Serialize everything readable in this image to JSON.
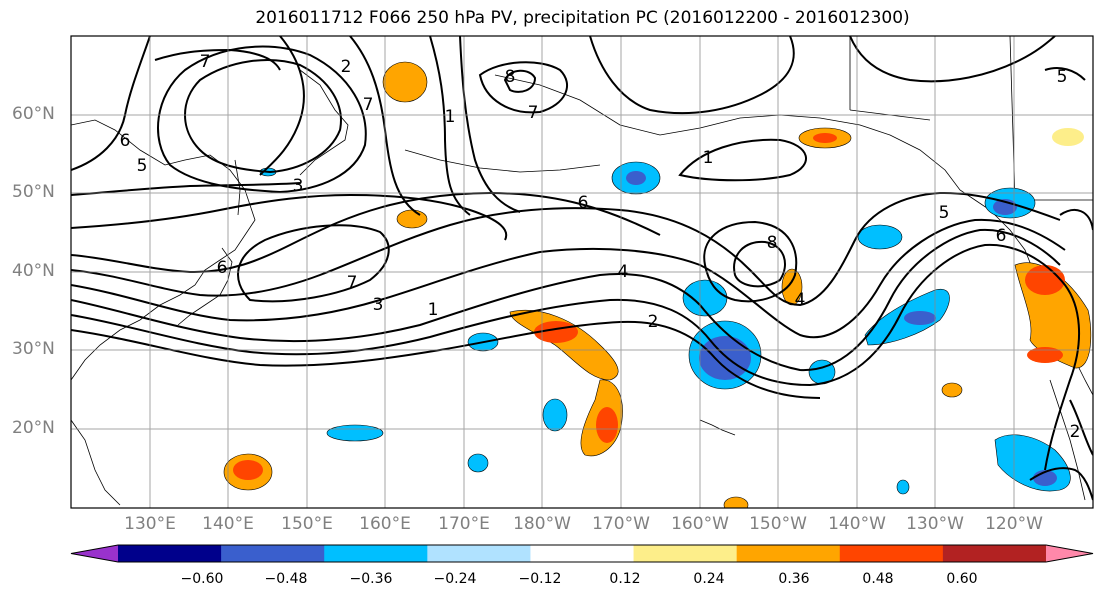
{
  "title": "2016011712 F066 250 hPa PV, precipitation PC (2016012200 - 2016012300)",
  "lat_labels": [
    "60°N",
    "50°N",
    "40°N",
    "30°N",
    "20°N"
  ],
  "lon_labels": [
    "130°E",
    "140°E",
    "150°E",
    "160°E",
    "170°E",
    "180°W",
    "170°W",
    "160°W",
    "150°W",
    "140°W",
    "130°W",
    "120°W"
  ],
  "contour_labels": [
    "7",
    "2",
    "7",
    "6",
    "5",
    "3",
    "8",
    "1",
    "7",
    "6",
    "4",
    "1",
    "2",
    "3",
    "7",
    "6",
    "8",
    "4",
    "6",
    "5",
    "5",
    "2",
    "1"
  ],
  "colorbar": {
    "ticks": [
      "−0.60",
      "−0.48",
      "−0.36",
      "−0.24",
      "−0.12",
      "0.12",
      "0.24",
      "0.36",
      "0.48",
      "0.60"
    ],
    "colors": [
      "#9932cc",
      "#00008b",
      "#3a5fcd",
      "#00bfff",
      "#b0e2ff",
      "#ffffff",
      "#fdee8a",
      "#ffa500",
      "#ff4500",
      "#b22222",
      "#ff88aa"
    ]
  },
  "colors": {
    "positive_high": "#ff4500",
    "positive_mid": "#ffa500",
    "positive_low": "#fdee8a",
    "negative_low": "#b0e2ff",
    "negative_mid": "#00bfff",
    "negative_high": "#3a5fcd"
  }
}
